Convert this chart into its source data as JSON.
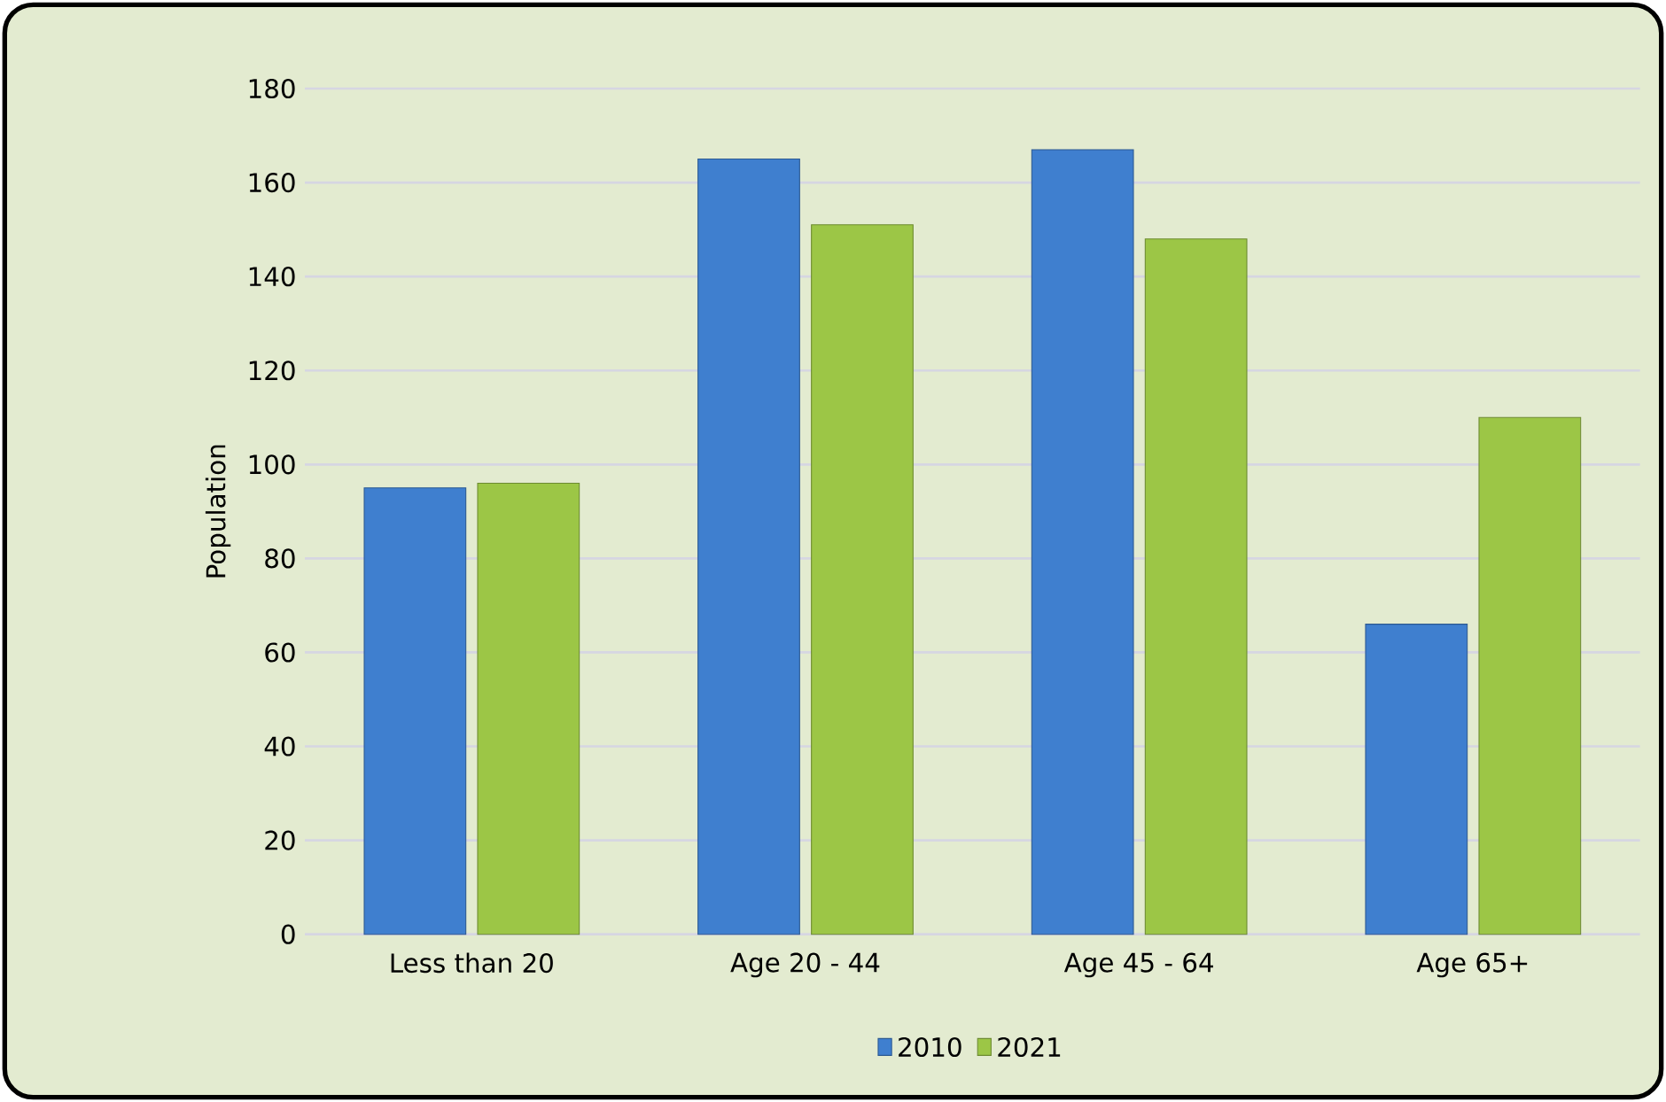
{
  "chart_data": {
    "type": "bar",
    "ylabel": "Population",
    "categories": [
      "Less than 20",
      "Age 20 - 44",
      "Age 45 - 64",
      "Age 65+"
    ],
    "series": [
      {
        "name": "2010",
        "color": "#3f7fcf",
        "values": [
          95,
          165,
          167,
          66
        ]
      },
      {
        "name": "2021",
        "color": "#9cc646",
        "values": [
          96,
          151,
          148,
          110
        ]
      }
    ],
    "ylim": [
      0,
      180
    ],
    "yticks": [
      0,
      20,
      40,
      60,
      80,
      100,
      120,
      140,
      160,
      180
    ],
    "grid": "y",
    "legend": "bottom"
  }
}
